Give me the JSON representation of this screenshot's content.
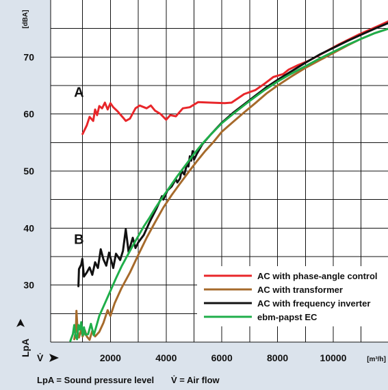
{
  "chart_data": {
    "type": "line",
    "x_axis": {
      "symbol": "V̇",
      "unit": "[m³/h]",
      "tick_values": [
        2000,
        4000,
        6000,
        8000,
        10000
      ],
      "tick_labels": [
        "2000",
        "4000",
        "6000",
        "8000",
        "10000"
      ],
      "range": [
        0,
        12000
      ],
      "grid_every": 1000
    },
    "y_axis": {
      "symbol": "LpA",
      "unit": "[dBA]",
      "tick_values": [
        30,
        40,
        50,
        60,
        70
      ],
      "tick_labels": [
        "30",
        "40",
        "50",
        "60",
        "70"
      ],
      "range": [
        20,
        80
      ],
      "grid_every": 5
    },
    "grid": true,
    "legend_placement": "bottom-right",
    "curve_labels": [
      {
        "text": "A",
        "x": 870,
        "y": 63.0
      },
      {
        "text": "B",
        "x": 870,
        "y": 37.2
      }
    ],
    "series": [
      {
        "name": "AC with phase-angle control",
        "color": "#e8262a",
        "points": [
          [
            1000,
            56.5
          ],
          [
            1150,
            58.0
          ],
          [
            1250,
            59.5
          ],
          [
            1380,
            58.8
          ],
          [
            1450,
            60.8
          ],
          [
            1520,
            59.8
          ],
          [
            1600,
            61.4
          ],
          [
            1700,
            61.0
          ],
          [
            1800,
            62.0
          ],
          [
            1900,
            60.8
          ],
          [
            2000,
            61.9
          ],
          [
            2100,
            61.2
          ],
          [
            2250,
            60.5
          ],
          [
            2450,
            59.4
          ],
          [
            2550,
            58.8
          ],
          [
            2700,
            59.2
          ],
          [
            2900,
            61.0
          ],
          [
            3050,
            61.5
          ],
          [
            3300,
            61.0
          ],
          [
            3450,
            61.5
          ],
          [
            3600,
            60.6
          ],
          [
            3800,
            60.0
          ],
          [
            4000,
            59.0
          ],
          [
            4150,
            59.8
          ],
          [
            4350,
            59.6
          ],
          [
            4600,
            61.0
          ],
          [
            4850,
            61.2
          ],
          [
            5150,
            62.1
          ],
          [
            5600,
            62.0
          ],
          [
            6100,
            61.9
          ],
          [
            6350,
            62.0
          ],
          [
            6800,
            63.5
          ],
          [
            7200,
            64.2
          ],
          [
            7500,
            65.2
          ],
          [
            7850,
            66.5
          ],
          [
            8200,
            67.0
          ],
          [
            8400,
            67.8
          ],
          [
            8700,
            68.5
          ],
          [
            9100,
            69.3
          ],
          [
            9600,
            70.6
          ],
          [
            10200,
            72.2
          ],
          [
            10900,
            73.9
          ],
          [
            11600,
            75.4
          ],
          [
            12000,
            76.3
          ]
        ]
      },
      {
        "name": "AC with transformer",
        "color": "#a66a2b",
        "points": [
          [
            700,
            20.5
          ],
          [
            760,
            22.0
          ],
          [
            780,
            25.5
          ],
          [
            820,
            22.0
          ],
          [
            870,
            20.8
          ],
          [
            950,
            22.2
          ],
          [
            1000,
            21.0
          ],
          [
            1080,
            22.1
          ],
          [
            1150,
            21.0
          ],
          [
            1250,
            20.4
          ],
          [
            1350,
            22.0
          ],
          [
            1450,
            21.0
          ],
          [
            1600,
            21.8
          ],
          [
            1750,
            23.4
          ],
          [
            1900,
            25.6
          ],
          [
            2000,
            24.6
          ],
          [
            2150,
            26.8
          ],
          [
            2400,
            29.5
          ],
          [
            2700,
            32.2
          ],
          [
            3000,
            35.3
          ],
          [
            3300,
            38.3
          ],
          [
            3600,
            41.0
          ],
          [
            3900,
            43.6
          ],
          [
            4200,
            45.8
          ],
          [
            4500,
            47.8
          ],
          [
            4800,
            49.8
          ],
          [
            5100,
            51.7
          ],
          [
            5400,
            53.5
          ],
          [
            5700,
            55.1
          ],
          [
            6000,
            56.9
          ],
          [
            6400,
            58.6
          ],
          [
            6800,
            60.3
          ],
          [
            7200,
            61.9
          ],
          [
            7600,
            63.6
          ],
          [
            8000,
            65.0
          ],
          [
            8500,
            66.6
          ],
          [
            9000,
            68.1
          ],
          [
            9500,
            69.4
          ],
          [
            10000,
            70.7
          ],
          [
            10500,
            72.0
          ],
          [
            11000,
            73.2
          ],
          [
            11500,
            74.2
          ],
          [
            12000,
            75.0
          ]
        ]
      },
      {
        "name": "AC with frequency inverter",
        "color": "#111111",
        "points": [
          [
            850,
            29.8
          ],
          [
            870,
            32.8
          ],
          [
            950,
            33.6
          ],
          [
            990,
            34.6
          ],
          [
            1050,
            31.5
          ],
          [
            1150,
            32.2
          ],
          [
            1250,
            33.1
          ],
          [
            1350,
            31.8
          ],
          [
            1450,
            34.0
          ],
          [
            1550,
            33.0
          ],
          [
            1650,
            36.3
          ],
          [
            1750,
            34.5
          ],
          [
            1850,
            33.4
          ],
          [
            1950,
            35.7
          ],
          [
            2100,
            33.0
          ],
          [
            2200,
            35.5
          ],
          [
            2350,
            34.4
          ],
          [
            2450,
            36.0
          ],
          [
            2550,
            39.8
          ],
          [
            2650,
            35.8
          ],
          [
            2800,
            38.3
          ],
          [
            2900,
            36.5
          ],
          [
            3000,
            37.5
          ],
          [
            3200,
            38.8
          ],
          [
            3400,
            41.0
          ],
          [
            3650,
            43.4
          ],
          [
            3850,
            45.6
          ],
          [
            3900,
            45.0
          ],
          [
            4050,
            46.6
          ],
          [
            4200,
            47.3
          ],
          [
            4350,
            48.6
          ],
          [
            4400,
            48.0
          ],
          [
            4500,
            48.7
          ],
          [
            4550,
            50.0
          ],
          [
            4650,
            49.4
          ],
          [
            4750,
            51.2
          ],
          [
            4800,
            50.8
          ],
          [
            4850,
            52.6
          ],
          [
            4900,
            51.8
          ],
          [
            4950,
            53.5
          ],
          [
            5000,
            52.0
          ],
          [
            5100,
            53.0
          ],
          [
            5300,
            54.7
          ],
          [
            5600,
            56.4
          ],
          [
            6000,
            58.5
          ],
          [
            6400,
            60.2
          ],
          [
            6800,
            61.7
          ],
          [
            7200,
            63.2
          ],
          [
            7600,
            64.7
          ],
          [
            8000,
            66.0
          ],
          [
            8500,
            67.5
          ],
          [
            9000,
            69.0
          ],
          [
            9500,
            70.4
          ],
          [
            10000,
            71.6
          ],
          [
            10500,
            72.8
          ],
          [
            11000,
            73.9
          ],
          [
            11500,
            75.0
          ],
          [
            12000,
            76.0
          ]
        ]
      },
      {
        "name": "ebm-papst EC",
        "color": "#1fae4a",
        "points": [
          [
            560,
            20.2
          ],
          [
            650,
            21.4
          ],
          [
            700,
            23.0
          ],
          [
            750,
            21.0
          ],
          [
            800,
            20.5
          ],
          [
            850,
            23.0
          ],
          [
            900,
            22.2
          ],
          [
            950,
            23.5
          ],
          [
            1000,
            21.2
          ],
          [
            1050,
            22.6
          ],
          [
            1100,
            21.3
          ],
          [
            1200,
            21.4
          ],
          [
            1300,
            23.2
          ],
          [
            1400,
            21.2
          ],
          [
            1500,
            22.9
          ],
          [
            1600,
            24.6
          ],
          [
            1800,
            26.8
          ],
          [
            2000,
            29.0
          ],
          [
            2200,
            31.2
          ],
          [
            2400,
            33.3
          ],
          [
            2600,
            35.1
          ],
          [
            2800,
            36.9
          ],
          [
            3000,
            38.6
          ],
          [
            3200,
            40.3
          ],
          [
            3400,
            41.8
          ],
          [
            3600,
            43.4
          ],
          [
            3800,
            44.9
          ],
          [
            4000,
            46.3
          ],
          [
            4200,
            47.7
          ],
          [
            4400,
            49.1
          ],
          [
            4600,
            50.4
          ],
          [
            4800,
            51.7
          ],
          [
            5000,
            53.0
          ],
          [
            5300,
            54.8
          ],
          [
            5600,
            56.4
          ],
          [
            6000,
            58.4
          ],
          [
            6500,
            60.4
          ],
          [
            7000,
            62.3
          ],
          [
            7500,
            64.1
          ],
          [
            8000,
            65.7
          ],
          [
            8500,
            67.1
          ],
          [
            9000,
            68.4
          ],
          [
            9500,
            69.7
          ],
          [
            10000,
            70.9
          ],
          [
            10500,
            72.1
          ],
          [
            11000,
            73.2
          ],
          [
            11500,
            74.2
          ],
          [
            12000,
            75.0
          ]
        ]
      }
    ],
    "footnote": {
      "lpa_text": "LpA = Sound pressure level",
      "v_text": "V̇ = Air flow"
    }
  }
}
